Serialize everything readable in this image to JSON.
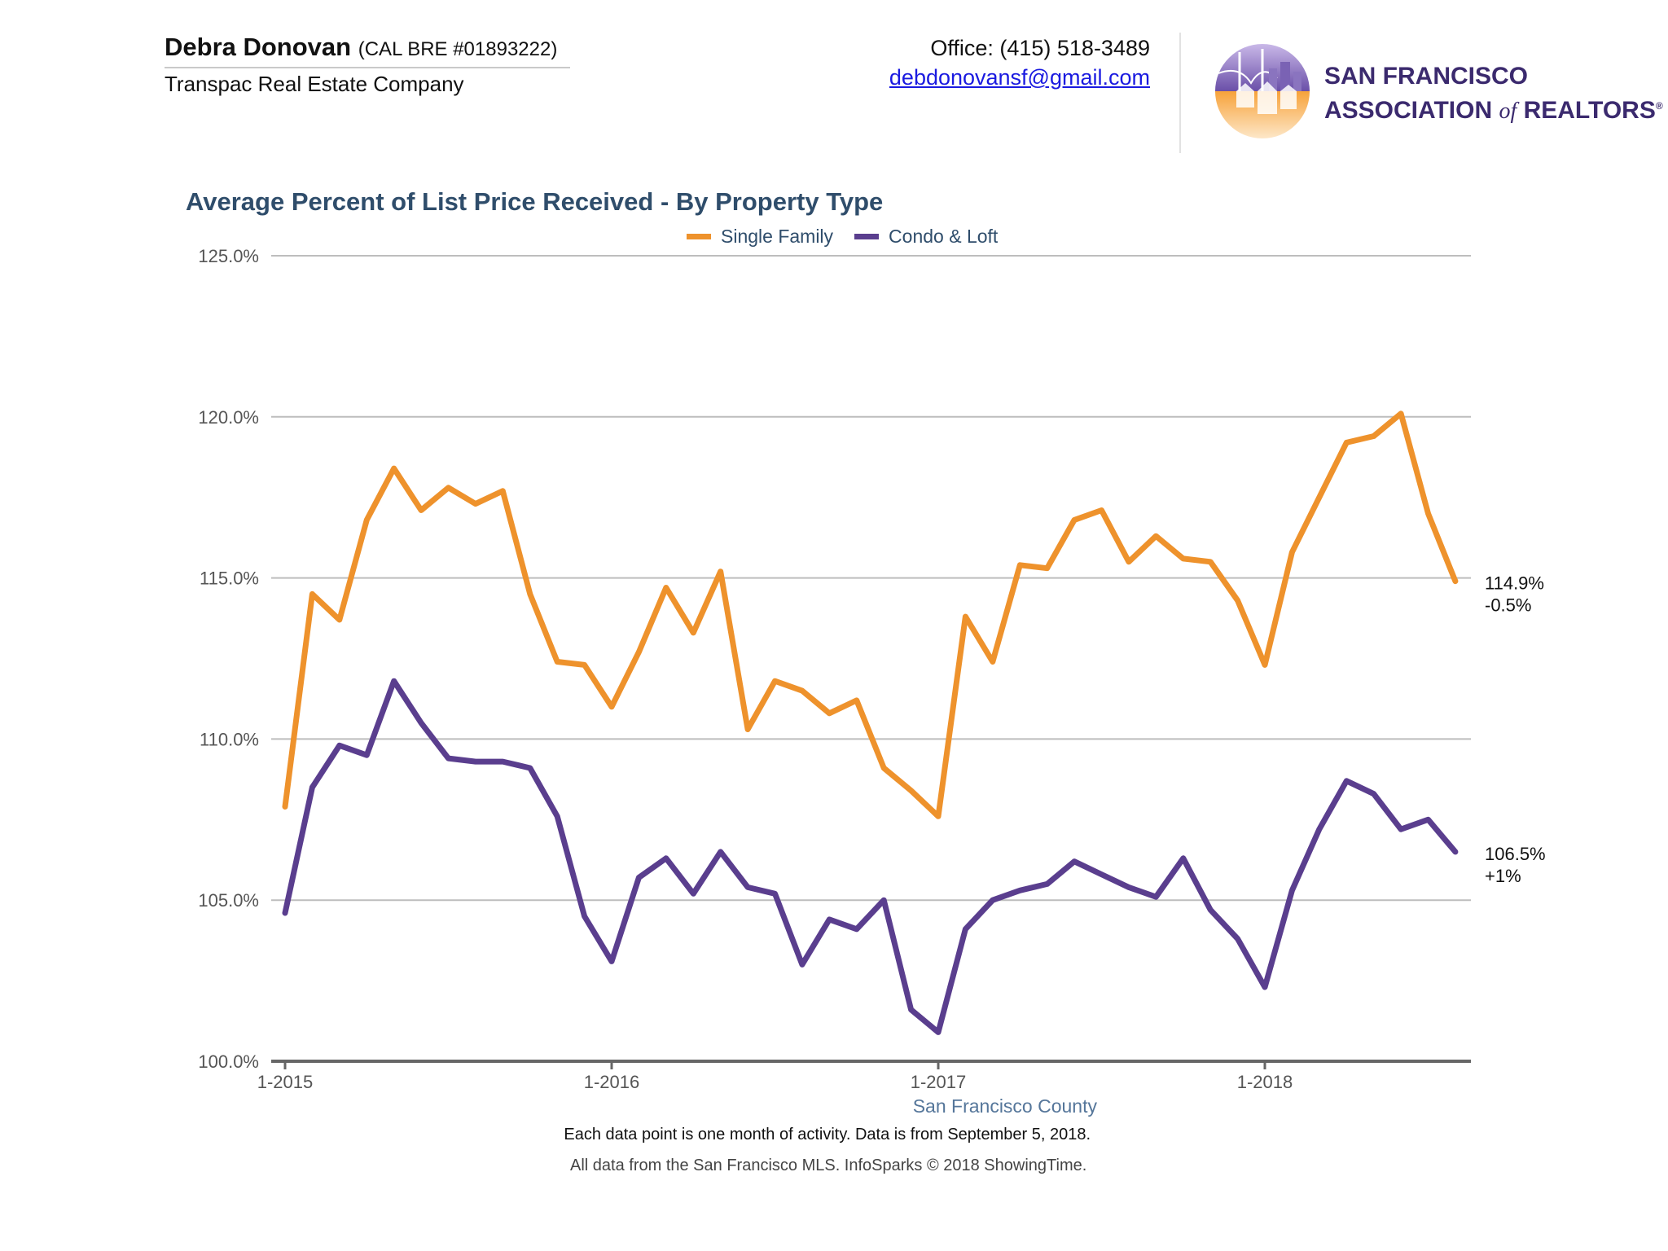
{
  "header": {
    "agent_name": "Debra Donovan",
    "agent_license": "(CAL BRE #01893222)",
    "company": "Transpac Real Estate Company",
    "office": "Office: (415) 518-3489",
    "email": "debdonovansf@gmail.com",
    "logo_line1": "San Francisco",
    "logo_line2_a": "Association",
    "logo_line2_of": "of",
    "logo_line2_b": "Realtors",
    "logo_reg": "®"
  },
  "colors": {
    "single_family": "#ee922c",
    "condo_loft": "#5a3e8e",
    "title": "#2f4d6b",
    "grid": "#bdbdbd",
    "axis": "#666666"
  },
  "chart_data": {
    "type": "line",
    "title": "Average Percent of List Price Received - By Property Type",
    "legend_position": "top-center",
    "grid": true,
    "ylim": [
      100,
      125
    ],
    "y_ticks": [
      "100.0%",
      "105.0%",
      "110.0%",
      "115.0%",
      "120.0%",
      "125.0%"
    ],
    "x_ticks": [
      "1-2015",
      "1-2016",
      "1-2017",
      "1-2018"
    ],
    "x": [
      "1-2015",
      "2-2015",
      "3-2015",
      "4-2015",
      "5-2015",
      "6-2015",
      "7-2015",
      "8-2015",
      "9-2015",
      "10-2015",
      "11-2015",
      "12-2015",
      "1-2016",
      "2-2016",
      "3-2016",
      "4-2016",
      "5-2016",
      "6-2016",
      "7-2016",
      "8-2016",
      "9-2016",
      "10-2016",
      "11-2016",
      "12-2016",
      "1-2017",
      "2-2017",
      "3-2017",
      "4-2017",
      "5-2017",
      "6-2017",
      "7-2017",
      "8-2017",
      "9-2017",
      "10-2017",
      "11-2017",
      "12-2017",
      "1-2018",
      "2-2018",
      "3-2018",
      "4-2018",
      "5-2018",
      "6-2018",
      "7-2018",
      "8-2018"
    ],
    "series": [
      {
        "name": "Single Family",
        "color_key": "single_family",
        "values": [
          107.9,
          114.5,
          113.7,
          116.8,
          118.4,
          117.1,
          117.8,
          117.3,
          117.7,
          114.5,
          112.4,
          112.3,
          111.0,
          112.7,
          114.7,
          113.3,
          115.2,
          110.3,
          111.8,
          111.5,
          110.8,
          111.2,
          109.1,
          108.4,
          107.6,
          113.8,
          112.4,
          115.4,
          115.3,
          116.8,
          117.1,
          115.5,
          116.3,
          115.6,
          115.5,
          114.3,
          112.3,
          115.8,
          117.5,
          119.2,
          119.4,
          120.1,
          117.0,
          114.9
        ]
      },
      {
        "name": "Condo & Loft",
        "color_key": "condo_loft",
        "values": [
          104.6,
          108.5,
          109.8,
          109.5,
          111.8,
          110.5,
          109.4,
          109.3,
          109.3,
          109.1,
          107.6,
          104.5,
          103.1,
          105.7,
          106.3,
          105.2,
          106.5,
          105.4,
          105.2,
          103.0,
          104.4,
          104.1,
          105.0,
          101.6,
          100.9,
          104.1,
          105.0,
          105.3,
          105.5,
          106.2,
          105.8,
          105.4,
          105.1,
          106.3,
          104.7,
          103.8,
          102.3,
          105.3,
          107.2,
          108.7,
          108.3,
          107.2,
          107.5,
          106.5
        ]
      }
    ],
    "end_labels": [
      {
        "value_label": "114.9%",
        "change_label": "-0.5%"
      },
      {
        "value_label": "106.5%",
        "change_label": "+1%"
      }
    ]
  },
  "footer": {
    "region": "San Francisco County",
    "note": "Each data point is one month of activity. Data is from September 5, 2018.",
    "source": "All data from the San Francisco MLS. InfoSparks © 2018 ShowingTime."
  }
}
